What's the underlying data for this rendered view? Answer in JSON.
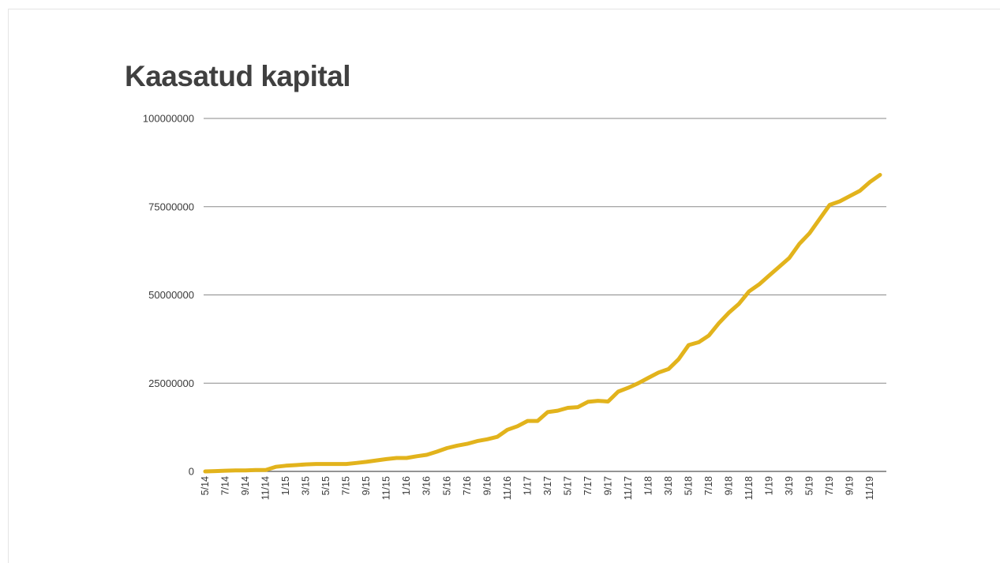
{
  "chart_data": {
    "type": "line",
    "title": "Kaasatud kapital",
    "xlabel": "",
    "ylabel": "",
    "ylim": [
      0,
      100000000
    ],
    "yticks": [
      "0",
      "25000000",
      "50000000",
      "75000000",
      "100000000"
    ],
    "ytick_values": [
      0,
      25000000,
      50000000,
      75000000,
      100000000
    ],
    "grid": true,
    "legend": "none",
    "line_color": "#e2b31c",
    "x_tick_labels": [
      "5/14",
      "7/14",
      "9/14",
      "11/14",
      "1/15",
      "3/15",
      "5/15",
      "7/15",
      "9/15",
      "11/15",
      "1/16",
      "3/16",
      "5/16",
      "7/16",
      "9/16",
      "11/16",
      "1/17",
      "3/17",
      "5/17",
      "7/17",
      "9/17",
      "11/17",
      "1/18",
      "3/18",
      "5/18",
      "7/18",
      "9/18",
      "11/18",
      "1/19",
      "3/19",
      "5/19",
      "7/19",
      "9/19",
      "11/19"
    ],
    "x": [
      "5/14",
      "6/14",
      "7/14",
      "8/14",
      "9/14",
      "10/14",
      "11/14",
      "12/14",
      "1/15",
      "2/15",
      "3/15",
      "4/15",
      "5/15",
      "6/15",
      "7/15",
      "8/15",
      "9/15",
      "10/15",
      "11/15",
      "12/15",
      "1/16",
      "2/16",
      "3/16",
      "4/16",
      "5/16",
      "6/16",
      "7/16",
      "8/16",
      "9/16",
      "10/16",
      "11/16",
      "12/16",
      "1/17",
      "2/17",
      "3/17",
      "4/17",
      "5/17",
      "6/17",
      "7/17",
      "8/17",
      "9/17",
      "10/17",
      "11/17",
      "12/17",
      "1/18",
      "2/18",
      "3/18",
      "4/18",
      "5/18",
      "6/18",
      "7/18",
      "8/18",
      "9/18",
      "10/18",
      "11/18",
      "12/18",
      "1/19",
      "2/19",
      "3/19",
      "4/19",
      "5/19",
      "6/19",
      "7/19",
      "8/19",
      "9/19",
      "10/19",
      "11/19",
      "12/19"
    ],
    "series": [
      {
        "values": [
          0,
          100000,
          200000,
          300000,
          300000,
          400000,
          400000,
          1300000,
          1600000,
          1800000,
          2000000,
          2100000,
          2100000,
          2100000,
          2100000,
          2400000,
          2700000,
          3100000,
          3500000,
          3800000,
          3800000,
          4300000,
          4700000,
          5600000,
          6600000,
          7300000,
          7800000,
          8600000,
          9100000,
          9800000,
          11800000,
          12800000,
          14300000,
          14300000,
          16800000,
          17200000,
          18000000,
          18200000,
          19700000,
          20000000,
          19800000,
          22600000,
          23700000,
          25000000,
          26500000,
          28000000,
          29000000,
          31800000,
          35800000,
          36600000,
          38500000,
          42000000,
          45000000,
          47500000,
          51000000,
          53000000,
          55500000,
          58000000,
          60500000,
          64500000,
          67500000,
          71500000,
          75500000,
          76500000,
          78000000,
          79500000,
          82000000,
          84000000
        ]
      }
    ]
  }
}
